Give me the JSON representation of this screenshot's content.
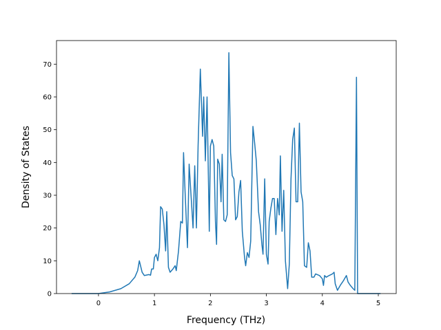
{
  "chart_data": {
    "type": "line",
    "x_label": "Frequency (THz)",
    "y_label": "Density of States",
    "xlim": [
      -0.75,
      5.32
    ],
    "ylim": [
      0,
      77.2
    ],
    "xticks": [
      0,
      1,
      2,
      3,
      4,
      5
    ],
    "yticks": [
      0,
      10,
      20,
      30,
      40,
      50,
      60,
      70
    ],
    "series": [
      {
        "color": "#1f77b4",
        "x": [
          -0.48,
          0,
          0.2,
          0.4,
          0.55,
          0.65,
          0.7,
          0.73,
          0.78,
          0.82,
          0.9,
          0.93,
          0.95,
          0.98,
          1.0,
          1.03,
          1.06,
          1.09,
          1.11,
          1.14,
          1.17,
          1.2,
          1.22,
          1.25,
          1.28,
          1.33,
          1.37,
          1.39,
          1.43,
          1.47,
          1.5,
          1.52,
          1.55,
          1.59,
          1.62,
          1.65,
          1.69,
          1.72,
          1.75,
          1.78,
          1.82,
          1.86,
          1.88,
          1.91,
          1.94,
          1.98,
          2.0,
          2.03,
          2.06,
          2.09,
          2.11,
          2.13,
          2.16,
          2.19,
          2.21,
          2.24,
          2.27,
          2.3,
          2.33,
          2.36,
          2.39,
          2.42,
          2.45,
          2.48,
          2.51,
          2.54,
          2.57,
          2.61,
          2.63,
          2.66,
          2.69,
          2.72,
          2.76,
          2.79,
          2.82,
          2.86,
          2.89,
          2.92,
          2.94,
          2.97,
          3.0,
          3.03,
          3.05,
          3.08,
          3.11,
          3.14,
          3.17,
          3.2,
          3.23,
          3.25,
          3.28,
          3.31,
          3.34,
          3.38,
          3.41,
          3.44,
          3.47,
          3.5,
          3.53,
          3.56,
          3.59,
          3.62,
          3.65,
          3.68,
          3.72,
          3.75,
          3.78,
          3.81,
          3.85,
          3.88,
          3.95,
          4.0,
          4.02,
          4.04,
          4.07,
          4.12,
          4.18,
          4.21,
          4.23,
          4.27,
          4.32,
          4.38,
          4.43,
          4.46,
          4.5,
          4.55,
          4.58,
          4.61,
          4.63,
          5.04
        ],
        "values": [
          0,
          0,
          0.5,
          1.5,
          3,
          5,
          7,
          10,
          6.5,
          5.5,
          5.8,
          5.6,
          7.5,
          7.5,
          11,
          12,
          10,
          14,
          26.5,
          25.8,
          21,
          13,
          25,
          8,
          6.5,
          7.5,
          8.5,
          7,
          13,
          22,
          21.5,
          43,
          30,
          14,
          39.5,
          31,
          20,
          39,
          20,
          45,
          68.5,
          48,
          60,
          40.5,
          60,
          19,
          45,
          47,
          45,
          22,
          15,
          41,
          39.5,
          28,
          42.5,
          22.5,
          22,
          24,
          73.5,
          43,
          36,
          35,
          22.5,
          23.5,
          31,
          34.5,
          19,
          11,
          8.5,
          12.5,
          11,
          16,
          51,
          46,
          40.5,
          25,
          21,
          15,
          12,
          35,
          12,
          9,
          22,
          26,
          29,
          29,
          18,
          29,
          24,
          42,
          19,
          31.5,
          10,
          1.5,
          9,
          35,
          47,
          50.5,
          28,
          28,
          52,
          31,
          28,
          8.5,
          8,
          15.5,
          13,
          5,
          5,
          6,
          5.5,
          4.5,
          2.5,
          5.5,
          5,
          5.5,
          6,
          6.5,
          3,
          1,
          2.5,
          4,
          5.5,
          3.5,
          2.5,
          1.5,
          1,
          66,
          0,
          0
        ]
      }
    ]
  }
}
